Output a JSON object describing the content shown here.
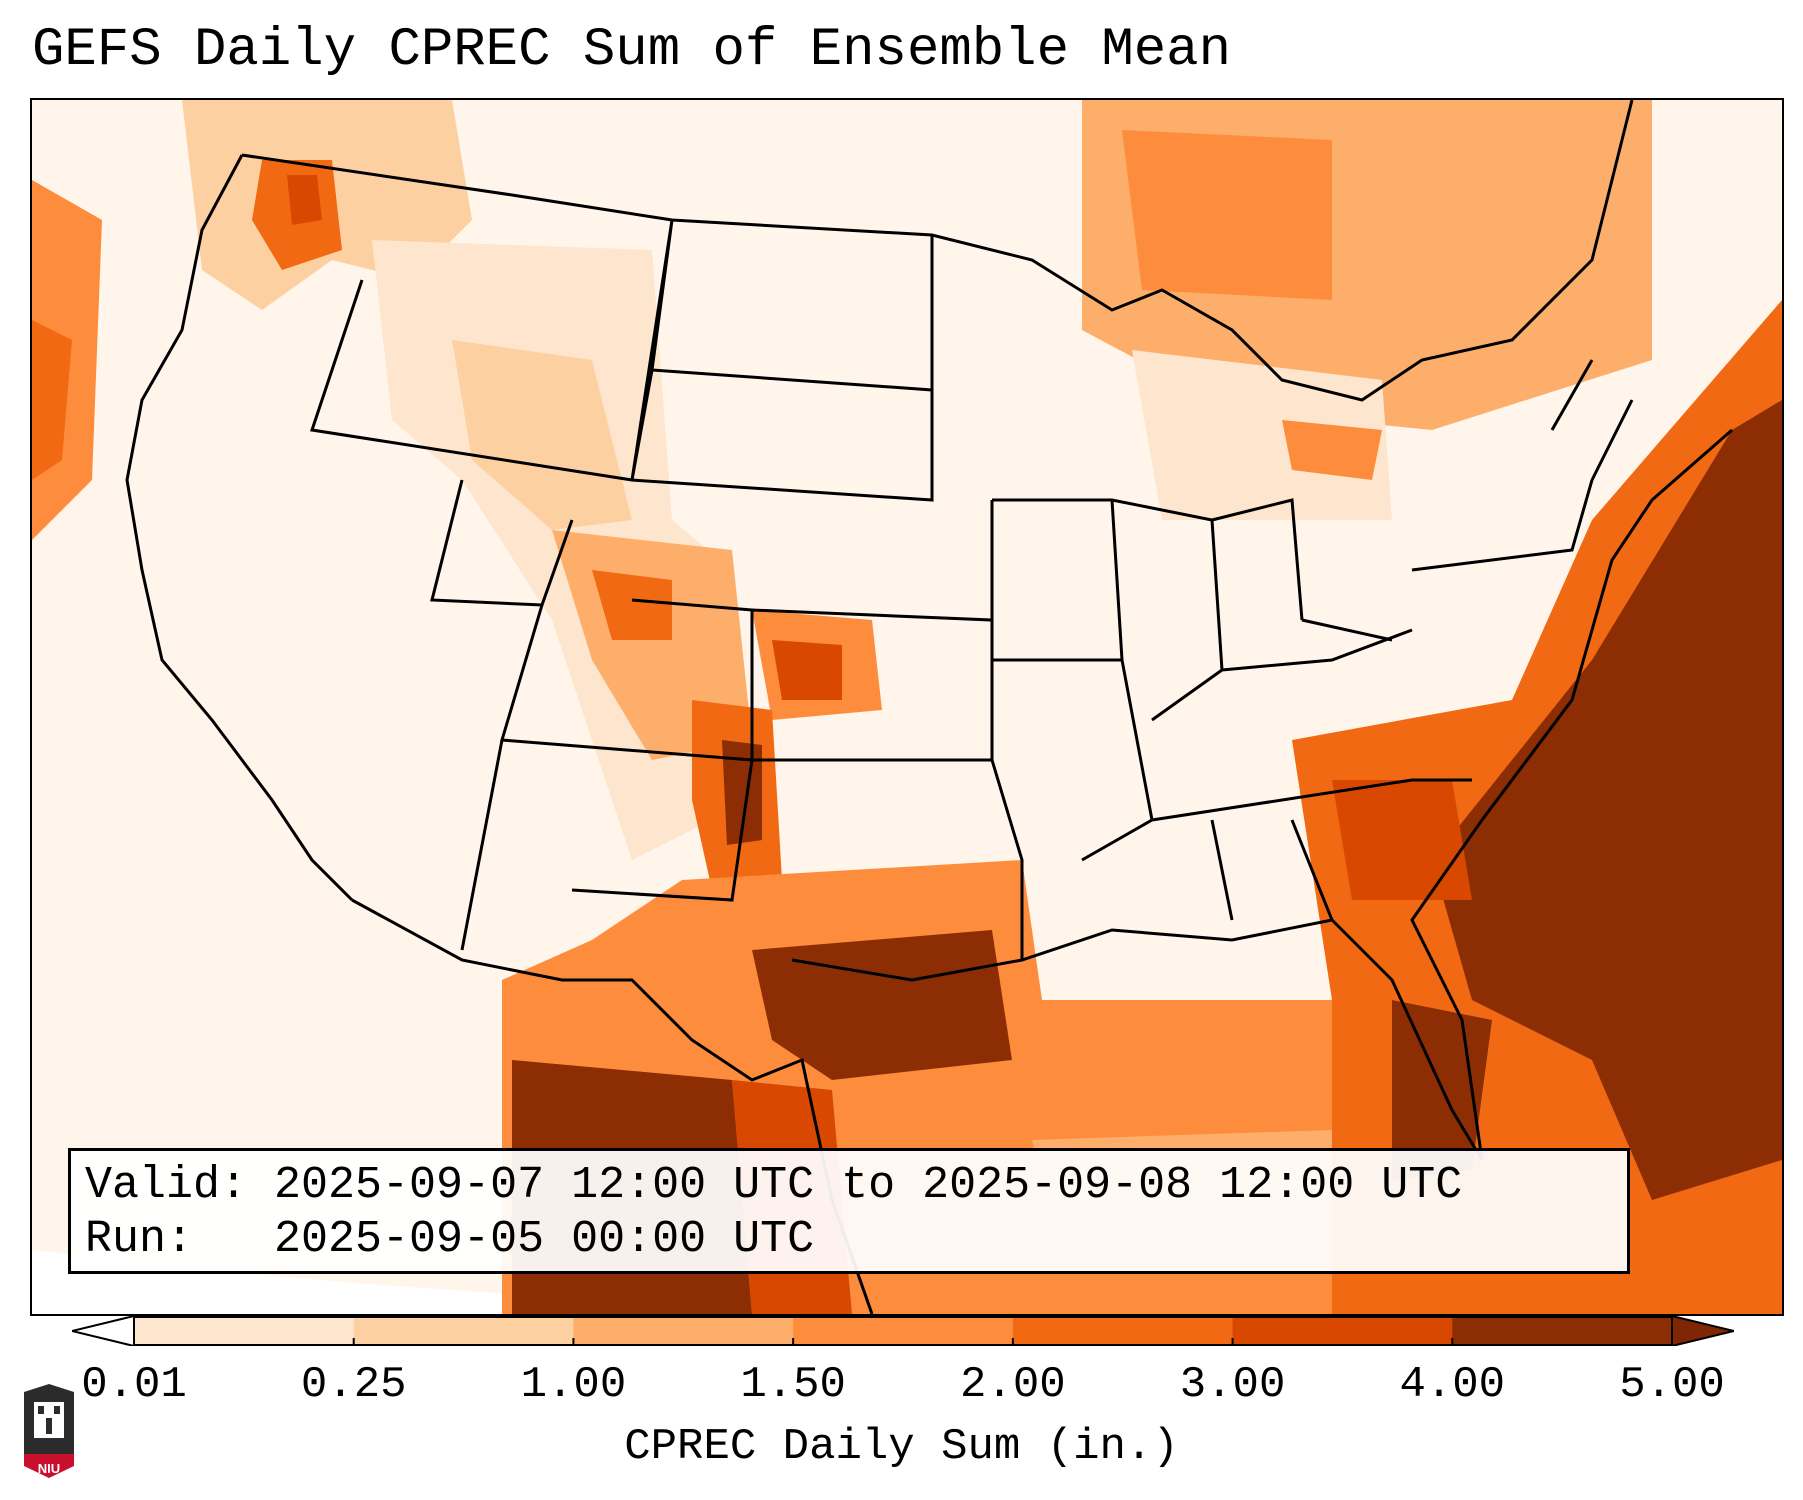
{
  "title": "GEFS Daily CPREC Sum of Ensemble Mean",
  "info": {
    "valid_line": "Valid: 2025-09-07 12:00 UTC to 2025-09-08 12:00 UTC",
    "run_line": "Run:   2025-09-05 00:00 UTC"
  },
  "colorbar": {
    "label": "CPREC Daily Sum (in.)",
    "ticks": [
      "0.01",
      "0.25",
      "1.00",
      "1.50",
      "2.00",
      "3.00",
      "4.00",
      "5.00"
    ],
    "colors": [
      "#fff5eb",
      "#fee6ce",
      "#fdd0a2",
      "#fdae6b",
      "#fd8d3c",
      "#f16913",
      "#d94801",
      "#8c2d04"
    ],
    "under_color": "#ffffff",
    "over_color": "#7f2704",
    "extend": "both"
  },
  "logo": {
    "text": "NIU",
    "colors": {
      "shield": "#2b2b2b",
      "band": "#c8102e"
    }
  }
}
